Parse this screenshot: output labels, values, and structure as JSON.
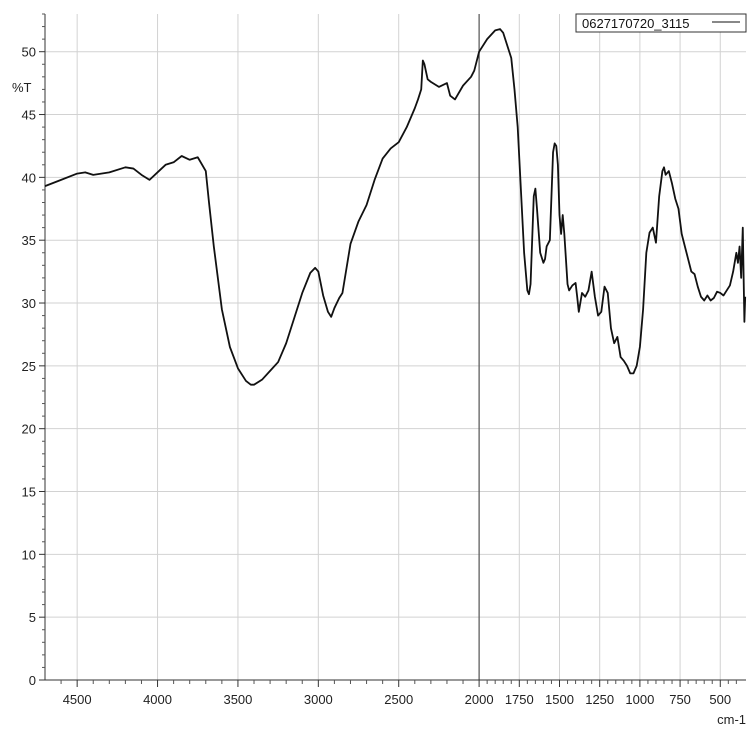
{
  "chart_data": {
    "type": "line",
    "title": "",
    "xlabel": "cm-1",
    "ylabel": "%T",
    "xlim": [
      4700,
      340
    ],
    "ylim": [
      0,
      53
    ],
    "x_ticks": [
      4500,
      4000,
      3500,
      3000,
      2500,
      2000,
      1750,
      1500,
      1250,
      1000,
      750,
      500
    ],
    "y_ticks": [
      0,
      5,
      10,
      15,
      20,
      25,
      30,
      35,
      40,
      45,
      50
    ],
    "grid": true,
    "reference_line_x": 2000,
    "legend": {
      "position": "top-right",
      "entries": [
        "0627170720_3115"
      ]
    },
    "series": [
      {
        "name": "0627170720_3115",
        "x": [
          4700,
          4600,
          4500,
          4450,
          4400,
          4300,
          4200,
          4150,
          4100,
          4050,
          4000,
          3950,
          3900,
          3850,
          3800,
          3750,
          3700,
          3680,
          3650,
          3600,
          3550,
          3500,
          3450,
          3420,
          3400,
          3350,
          3300,
          3250,
          3200,
          3150,
          3100,
          3050,
          3020,
          3000,
          2970,
          2940,
          2920,
          2900,
          2870,
          2850,
          2800,
          2750,
          2700,
          2650,
          2600,
          2550,
          2500,
          2450,
          2400,
          2380,
          2360,
          2350,
          2340,
          2320,
          2300,
          2250,
          2200,
          2180,
          2150,
          2100,
          2050,
          2030,
          2000,
          1950,
          1900,
          1870,
          1850,
          1800,
          1780,
          1760,
          1740,
          1720,
          1700,
          1690,
          1680,
          1670,
          1660,
          1650,
          1640,
          1620,
          1600,
          1590,
          1580,
          1560,
          1550,
          1540,
          1530,
          1520,
          1510,
          1500,
          1490,
          1480,
          1470,
          1460,
          1450,
          1440,
          1420,
          1400,
          1390,
          1380,
          1360,
          1340,
          1320,
          1300,
          1280,
          1260,
          1240,
          1220,
          1200,
          1180,
          1160,
          1140,
          1120,
          1100,
          1080,
          1060,
          1040,
          1020,
          1000,
          980,
          960,
          940,
          920,
          900,
          880,
          860,
          850,
          840,
          820,
          800,
          780,
          760,
          740,
          720,
          700,
          680,
          660,
          640,
          620,
          600,
          580,
          560,
          540,
          520,
          500,
          480,
          460,
          440,
          420,
          400,
          390,
          380,
          370,
          360,
          350,
          345
        ],
        "y": [
          39.3,
          39.8,
          40.3,
          40.4,
          40.2,
          40.4,
          40.8,
          40.7,
          40.2,
          39.8,
          40.4,
          41.0,
          41.2,
          41.7,
          41.4,
          41.6,
          40.5,
          38.0,
          34.5,
          29.5,
          26.5,
          24.8,
          23.8,
          23.5,
          23.5,
          23.9,
          24.6,
          25.3,
          26.8,
          28.8,
          30.8,
          32.4,
          32.8,
          32.5,
          30.6,
          29.3,
          28.9,
          29.6,
          30.4,
          30.8,
          34.7,
          36.5,
          37.8,
          39.8,
          41.5,
          42.3,
          42.8,
          44.0,
          45.5,
          46.2,
          47.0,
          49.3,
          49.0,
          47.8,
          47.6,
          47.2,
          47.5,
          46.5,
          46.2,
          47.3,
          48.0,
          48.5,
          50.0,
          51.0,
          51.7,
          51.8,
          51.5,
          49.5,
          47.0,
          44.0,
          39.0,
          34.0,
          31.0,
          30.7,
          31.5,
          35.0,
          38.5,
          39.1,
          37.5,
          34.0,
          33.2,
          33.5,
          34.5,
          35.0,
          38.5,
          42.0,
          42.7,
          42.5,
          41.0,
          37.0,
          35.5,
          37.0,
          35.5,
          33.5,
          31.5,
          31.0,
          31.4,
          31.6,
          30.5,
          29.3,
          30.8,
          30.5,
          31.0,
          32.5,
          30.5,
          29.0,
          29.3,
          31.3,
          30.8,
          28.0,
          26.8,
          27.3,
          25.7,
          25.4,
          25.0,
          24.4,
          24.4,
          25.0,
          26.5,
          29.5,
          34.0,
          35.6,
          36.0,
          34.8,
          38.5,
          40.5,
          40.8,
          40.2,
          40.5,
          39.5,
          38.3,
          37.5,
          35.5,
          34.5,
          33.5,
          32.5,
          32.3,
          31.3,
          30.5,
          30.2,
          30.6,
          30.2,
          30.4,
          30.9,
          30.8,
          30.6,
          31.0,
          31.4,
          32.5,
          34.0,
          33.2,
          34.5,
          32.0,
          36.0,
          28.5,
          30.5
        ]
      }
    ]
  }
}
